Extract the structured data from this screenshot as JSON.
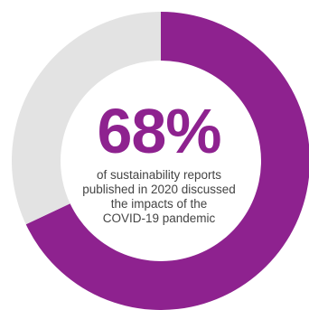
{
  "chart_data": {
    "type": "pie",
    "subtype": "donut",
    "categories": [
      "discussed COVID-19 pandemic impacts",
      "did not"
    ],
    "values": [
      68,
      32
    ],
    "unit": "%",
    "center_value": "68%",
    "caption_lines": [
      "of sustainability reports",
      "published in 2020 discussed",
      "the impacts of the",
      "COVID-19 pandemic"
    ],
    "title": "",
    "legend": "none"
  },
  "colors": {
    "highlight": "#8E228F",
    "remainder": "#E3E3E3",
    "caption": "#444444",
    "background": "#FFFFFF"
  }
}
